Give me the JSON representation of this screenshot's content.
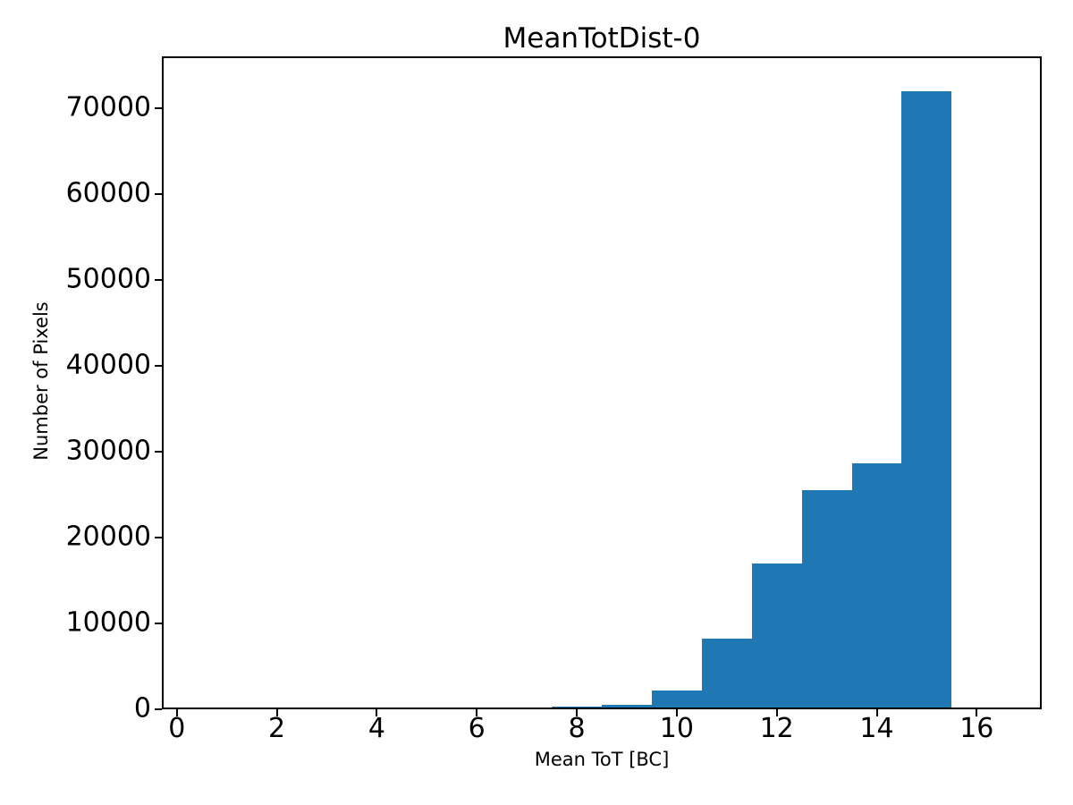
{
  "figure": {
    "title": "MeanTotDist-0",
    "xlabel": "Mean ToT [BC]",
    "ylabel": "Number of Pixels"
  },
  "chart_data": {
    "type": "bar",
    "subtype": "histogram",
    "title": "MeanTotDist-0",
    "xlabel": "Mean ToT [BC]",
    "ylabel": "Number of Pixels",
    "bar_color": "#1f77b4",
    "background_color": "#ffffff",
    "axis_color": "#000000",
    "grid": false,
    "legend": null,
    "bin_edges": [
      7.5,
      8.5,
      9.5,
      10.5,
      11.5,
      12.5,
      13.5,
      14.5,
      15.5
    ],
    "bin_centers": [
      8,
      9,
      10,
      11,
      12,
      13,
      14,
      15
    ],
    "counts": [
      300,
      550,
      2200,
      8200,
      17000,
      25500,
      28600,
      71900
    ],
    "xlim": [
      -0.3,
      17.3
    ],
    "ylim": [
      0,
      76000
    ],
    "xticks": [
      0,
      2,
      4,
      6,
      8,
      10,
      12,
      14,
      16
    ],
    "xtick_labels": [
      "0",
      "2",
      "4",
      "6",
      "8",
      "10",
      "12",
      "14",
      "16"
    ],
    "yticks": [
      0,
      10000,
      20000,
      30000,
      40000,
      50000,
      60000,
      70000
    ],
    "ytick_labels": [
      "0",
      "10000",
      "20000",
      "30000",
      "40000",
      "50000",
      "60000",
      "70000"
    ]
  }
}
